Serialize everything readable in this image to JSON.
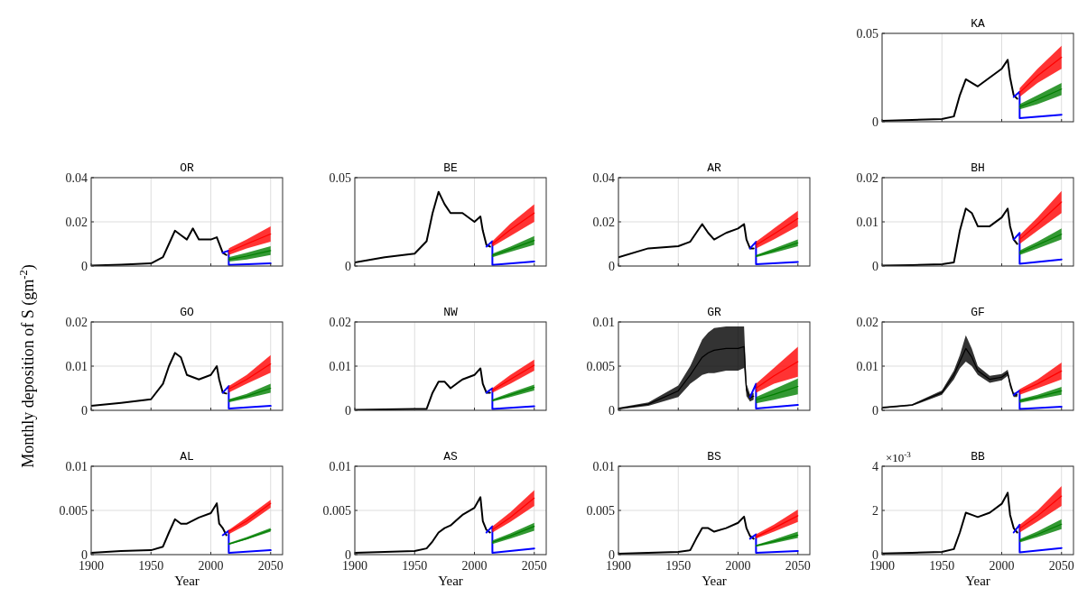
{
  "chart_data": [
    {
      "type": "line",
      "title": "KA",
      "xlim": [
        1900,
        2060
      ],
      "xticks": [
        1900,
        1950,
        2000,
        2050
      ],
      "ylim": [
        0,
        0.05
      ],
      "yticks": [
        0,
        0.05
      ],
      "grid": true,
      "tick_labels": "y",
      "x": [
        1900,
        1925,
        1950,
        1960,
        1965,
        1970,
        1975,
        1980,
        1990,
        2000,
        2005,
        2007,
        2010,
        2013
      ],
      "series": [
        {
          "color": "#000000",
          "values": [
            0.0005,
            0.001,
            0.0015,
            0.003,
            0.015,
            0.024,
            0.022,
            0.02,
            0.025,
            0.03,
            0.035,
            0.025,
            0.015,
            0.013
          ]
        },
        {
          "color": "#0000ff",
          "x": [
            2010,
            2015,
            2015,
            2050
          ],
          "values": [
            0.014,
            0.017,
            0.002,
            0.004
          ]
        },
        {
          "color": "#ff0000",
          "x": [
            2015,
            2030,
            2050
          ],
          "values": [
            0.0165,
            0.026,
            0.0365
          ],
          "lower": [
            0.014,
            0.022,
            0.03
          ],
          "upper": [
            0.019,
            0.03,
            0.043
          ]
        },
        {
          "color": "#007f00",
          "x": [
            2015,
            2030,
            2050
          ],
          "values": [
            0.0085,
            0.0125,
            0.0185
          ],
          "lower": [
            0.007,
            0.01,
            0.015
          ],
          "upper": [
            0.01,
            0.015,
            0.022
          ]
        }
      ]
    },
    {
      "type": "line",
      "title": "OR",
      "xlim": [
        1900,
        2060
      ],
      "xticks": [
        1900,
        1950,
        2000,
        2050
      ],
      "ylim": [
        0,
        0.04
      ],
      "yticks": [
        0,
        0.02,
        0.04
      ],
      "grid": true,
      "tick_labels": "y",
      "x": [
        1900,
        1925,
        1950,
        1960,
        1965,
        1970,
        1975,
        1980,
        1985,
        1990,
        2000,
        2005,
        2010,
        2013
      ],
      "series": [
        {
          "color": "#000000",
          "values": [
            0.0002,
            0.0006,
            0.0012,
            0.004,
            0.01,
            0.016,
            0.014,
            0.012,
            0.017,
            0.012,
            0.012,
            0.013,
            0.006,
            0.005
          ]
        },
        {
          "color": "#0000ff",
          "x": [
            2010,
            2015,
            2015,
            2050
          ],
          "values": [
            0.006,
            0.007,
            0.0005,
            0.0012
          ]
        },
        {
          "color": "#ff0000",
          "x": [
            2015,
            2030,
            2050
          ],
          "values": [
            0.0065,
            0.01,
            0.0145
          ],
          "lower": [
            0.005,
            0.008,
            0.011
          ],
          "upper": [
            0.008,
            0.012,
            0.018
          ]
        },
        {
          "color": "#007f00",
          "x": [
            2015,
            2030,
            2050
          ],
          "values": [
            0.003,
            0.0045,
            0.007
          ],
          "lower": [
            0.002,
            0.003,
            0.005
          ],
          "upper": [
            0.004,
            0.006,
            0.009
          ]
        }
      ]
    },
    {
      "type": "line",
      "title": "BE",
      "xlim": [
        1900,
        2060
      ],
      "xticks": [
        1900,
        1950,
        2000,
        2050
      ],
      "ylim": [
        0,
        0.05
      ],
      "yticks": [
        0,
        0.05
      ],
      "grid": true,
      "tick_labels": "y",
      "x": [
        1900,
        1925,
        1950,
        1960,
        1965,
        1970,
        1975,
        1980,
        1990,
        2000,
        2005,
        2007,
        2010,
        2013
      ],
      "series": [
        {
          "color": "#000000",
          "values": [
            0.002,
            0.005,
            0.007,
            0.014,
            0.03,
            0.042,
            0.035,
            0.03,
            0.03,
            0.025,
            0.028,
            0.02,
            0.012,
            0.011
          ]
        },
        {
          "color": "#0000ff",
          "x": [
            2010,
            2015,
            2015,
            2050
          ],
          "values": [
            0.011,
            0.014,
            0.0007,
            0.0025
          ]
        },
        {
          "color": "#ff0000",
          "x": [
            2015,
            2030,
            2050
          ],
          "values": [
            0.0125,
            0.0205,
            0.03
          ],
          "lower": [
            0.011,
            0.017,
            0.025
          ],
          "upper": [
            0.014,
            0.024,
            0.035
          ]
        },
        {
          "color": "#007f00",
          "x": [
            2015,
            2030,
            2050
          ],
          "values": [
            0.006,
            0.0095,
            0.0145
          ],
          "lower": [
            0.005,
            0.008,
            0.012
          ],
          "upper": [
            0.007,
            0.011,
            0.017
          ]
        }
      ]
    },
    {
      "type": "line",
      "title": "AR",
      "xlim": [
        1900,
        2060
      ],
      "xticks": [
        1900,
        1950,
        2000,
        2050
      ],
      "ylim": [
        0,
        0.04
      ],
      "yticks": [
        0,
        0.02,
        0.04
      ],
      "grid": true,
      "tick_labels": "y",
      "x": [
        1900,
        1925,
        1950,
        1960,
        1965,
        1970,
        1975,
        1980,
        1990,
        2000,
        2005,
        2007,
        2010,
        2013
      ],
      "series": [
        {
          "color": "#000000",
          "values": [
            0.004,
            0.008,
            0.009,
            0.011,
            0.015,
            0.019,
            0.015,
            0.012,
            0.015,
            0.017,
            0.019,
            0.012,
            0.008,
            0.008
          ]
        },
        {
          "color": "#0000ff",
          "x": [
            2010,
            2015,
            2015,
            2050
          ],
          "values": [
            0.008,
            0.011,
            0.0008,
            0.0018
          ]
        },
        {
          "color": "#ff0000",
          "x": [
            2015,
            2030,
            2050
          ],
          "values": [
            0.0095,
            0.0145,
            0.0215
          ],
          "lower": [
            0.008,
            0.012,
            0.018
          ],
          "upper": [
            0.011,
            0.017,
            0.025
          ]
        },
        {
          "color": "#007f00",
          "x": [
            2015,
            2030,
            2050
          ],
          "values": [
            0.0045,
            0.007,
            0.0105
          ],
          "lower": [
            0.004,
            0.006,
            0.009
          ],
          "upper": [
            0.005,
            0.008,
            0.012
          ]
        }
      ]
    },
    {
      "type": "line",
      "title": "BH",
      "xlim": [
        1900,
        2060
      ],
      "xticks": [
        1900,
        1950,
        2000,
        2050
      ],
      "ylim": [
        0,
        0.02
      ],
      "yticks": [
        0,
        0.01,
        0.02
      ],
      "grid": true,
      "tick_labels": "y",
      "x": [
        1900,
        1925,
        1950,
        1960,
        1965,
        1970,
        1975,
        1980,
        1990,
        2000,
        2005,
        2007,
        2010,
        2013
      ],
      "series": [
        {
          "color": "#000000",
          "values": [
            0.0001,
            0.0002,
            0.0004,
            0.0008,
            0.008,
            0.013,
            0.012,
            0.009,
            0.009,
            0.011,
            0.013,
            0.009,
            0.006,
            0.005
          ]
        },
        {
          "color": "#0000ff",
          "x": [
            2010,
            2015,
            2015,
            2050
          ],
          "values": [
            0.006,
            0.0075,
            0.0005,
            0.0015
          ]
        },
        {
          "color": "#ff0000",
          "x": [
            2015,
            2030,
            2050
          ],
          "values": [
            0.006,
            0.0095,
            0.0145
          ],
          "lower": [
            0.005,
            0.008,
            0.012
          ],
          "upper": [
            0.007,
            0.011,
            0.017
          ]
        },
        {
          "color": "#007f00",
          "x": [
            2015,
            2030,
            2050
          ],
          "values": [
            0.003,
            0.0048,
            0.0072
          ],
          "lower": [
            0.0025,
            0.004,
            0.006
          ],
          "upper": [
            0.0035,
            0.0055,
            0.0085
          ]
        }
      ]
    },
    {
      "type": "line",
      "title": "GO",
      "ylabel": "Monthly deposition of S (gm$^{-2}$)",
      "xlim": [
        1900,
        2060
      ],
      "xticks": [
        1900,
        1950,
        2000,
        2050
      ],
      "ylim": [
        0,
        0.02
      ],
      "yticks": [
        0,
        0.01,
        0.02
      ],
      "grid": true,
      "tick_labels": "y",
      "x": [
        1900,
        1925,
        1950,
        1960,
        1965,
        1970,
        1975,
        1980,
        1990,
        2000,
        2005,
        2007,
        2010,
        2013
      ],
      "series": [
        {
          "color": "#000000",
          "values": [
            0.001,
            0.0017,
            0.0025,
            0.006,
            0.01,
            0.013,
            0.012,
            0.008,
            0.007,
            0.008,
            0.01,
            0.007,
            0.004,
            0.0038
          ]
        },
        {
          "color": "#0000ff",
          "x": [
            2010,
            2015,
            2015,
            2050
          ],
          "values": [
            0.004,
            0.0055,
            0.0004,
            0.001
          ]
        },
        {
          "color": "#ff0000",
          "x": [
            2015,
            2030,
            2050
          ],
          "values": [
            0.0048,
            0.007,
            0.0105
          ],
          "lower": [
            0.004,
            0.006,
            0.0085
          ],
          "upper": [
            0.0055,
            0.008,
            0.0125
          ]
        },
        {
          "color": "#007f00",
          "x": [
            2015,
            2030,
            2050
          ],
          "values": [
            0.0022,
            0.0032,
            0.005
          ],
          "lower": [
            0.0018,
            0.0027,
            0.004
          ],
          "upper": [
            0.0025,
            0.0037,
            0.006
          ]
        }
      ]
    },
    {
      "type": "line",
      "title": "NW",
      "xlim": [
        1900,
        2060
      ],
      "xticks": [
        1900,
        1950,
        2000,
        2050
      ],
      "ylim": [
        0,
        0.02
      ],
      "yticks": [
        0,
        0.01,
        0.02
      ],
      "grid": true,
      "tick_labels": "y",
      "x": [
        1900,
        1925,
        1950,
        1960,
        1965,
        1970,
        1975,
        1980,
        1990,
        2000,
        2005,
        2007,
        2010,
        2013
      ],
      "series": [
        {
          "color": "#000000",
          "values": [
            0.0001,
            0.0002,
            0.0003,
            0.0003,
            0.004,
            0.0065,
            0.0065,
            0.005,
            0.007,
            0.008,
            0.0095,
            0.006,
            0.004,
            0.004
          ]
        },
        {
          "color": "#0000ff",
          "x": [
            2010,
            2015,
            2015,
            2050
          ],
          "values": [
            0.004,
            0.005,
            0.0003,
            0.0009
          ]
        },
        {
          "color": "#ff0000",
          "x": [
            2015,
            2030,
            2050
          ],
          "values": [
            0.0045,
            0.007,
            0.0102
          ],
          "lower": [
            0.004,
            0.006,
            0.009
          ],
          "upper": [
            0.005,
            0.008,
            0.0115
          ]
        },
        {
          "color": "#007f00",
          "x": [
            2015,
            2030,
            2050
          ],
          "values": [
            0.0022,
            0.0035,
            0.0052
          ],
          "lower": [
            0.002,
            0.003,
            0.0045
          ],
          "upper": [
            0.0025,
            0.004,
            0.0058
          ]
        }
      ]
    },
    {
      "type": "line",
      "title": "GR",
      "xlim": [
        1900,
        2060
      ],
      "xticks": [
        1900,
        1950,
        2000,
        2050
      ],
      "ylim": [
        0,
        0.01
      ],
      "yticks": [
        0,
        0.005,
        0.01
      ],
      "grid": true,
      "tick_labels": "y",
      "x": [
        1900,
        1925,
        1950,
        1960,
        1965,
        1970,
        1975,
        1980,
        1990,
        2000,
        2005,
        2007,
        2010,
        2013
      ],
      "series": [
        {
          "color": "#000000",
          "values": [
            0.0002,
            0.0007,
            0.0022,
            0.004,
            0.005,
            0.006,
            0.0065,
            0.0068,
            0.007,
            0.007,
            0.0072,
            0.0023,
            0.0014,
            0.0016
          ],
          "lower": [
            0.0001,
            0.0005,
            0.0015,
            0.003,
            0.0035,
            0.004,
            0.0042,
            0.0042,
            0.0045,
            0.0045,
            0.0048,
            0.0016,
            0.001,
            0.0012
          ],
          "upper": [
            0.0003,
            0.0009,
            0.0028,
            0.005,
            0.0065,
            0.008,
            0.0088,
            0.0093,
            0.0095,
            0.0095,
            0.0095,
            0.003,
            0.0018,
            0.002
          ]
        },
        {
          "color": "#0000ff",
          "x": [
            2010,
            2015,
            2015,
            2050
          ],
          "values": [
            0.0015,
            0.003,
            0.0002,
            0.0006
          ]
        },
        {
          "color": "#ff0000",
          "x": [
            2015,
            2030,
            2050
          ],
          "values": [
            0.0025,
            0.0039,
            0.0055
          ],
          "lower": [
            0.002,
            0.003,
            0.0038
          ],
          "upper": [
            0.003,
            0.0048,
            0.0072
          ]
        },
        {
          "color": "#007f00",
          "x": [
            2015,
            2030,
            2050
          ],
          "values": [
            0.0012,
            0.0018,
            0.0027
          ],
          "lower": [
            0.0008,
            0.0012,
            0.0018
          ],
          "upper": [
            0.0015,
            0.0024,
            0.0036
          ]
        }
      ]
    },
    {
      "type": "line",
      "title": "GF",
      "xlim": [
        1900,
        2060
      ],
      "xticks": [
        1900,
        1950,
        2000,
        2050
      ],
      "ylim": [
        0,
        0.02
      ],
      "yticks": [
        0,
        0.01,
        0.02
      ],
      "grid": true,
      "tick_labels": "y",
      "x": [
        1900,
        1925,
        1950,
        1960,
        1965,
        1970,
        1975,
        1980,
        1990,
        2000,
        2005,
        2007,
        2010,
        2013
      ],
      "series": [
        {
          "color": "#000000",
          "values": [
            0.0006,
            0.0012,
            0.004,
            0.008,
            0.011,
            0.014,
            0.012,
            0.009,
            0.007,
            0.0075,
            0.0085,
            0.006,
            0.0035,
            0.0035
          ],
          "lower": [
            0.0004,
            0.001,
            0.0035,
            0.007,
            0.0095,
            0.011,
            0.01,
            0.008,
            0.0062,
            0.0068,
            0.0078,
            0.0052,
            0.003,
            0.003
          ],
          "upper": [
            0.0008,
            0.0014,
            0.0045,
            0.009,
            0.0125,
            0.017,
            0.014,
            0.01,
            0.0078,
            0.0082,
            0.0092,
            0.0068,
            0.004,
            0.004
          ]
        },
        {
          "color": "#0000ff",
          "x": [
            2010,
            2015,
            2015,
            2050
          ],
          "values": [
            0.0035,
            0.0045,
            0.0003,
            0.0008
          ]
        },
        {
          "color": "#ff0000",
          "x": [
            2015,
            2030,
            2050
          ],
          "values": [
            0.0042,
            0.006,
            0.0089
          ],
          "lower": [
            0.0035,
            0.005,
            0.007
          ],
          "upper": [
            0.0048,
            0.007,
            0.0108
          ]
        },
        {
          "color": "#007f00",
          "x": [
            2015,
            2030,
            2050
          ],
          "values": [
            0.0021,
            0.003,
            0.0044
          ],
          "lower": [
            0.0017,
            0.0025,
            0.0035
          ],
          "upper": [
            0.0025,
            0.0035,
            0.0053
          ]
        }
      ]
    },
    {
      "type": "line",
      "title": "AL",
      "xlabel": "Year",
      "xlim": [
        1900,
        2060
      ],
      "xticks": [
        1900,
        1950,
        2000,
        2050
      ],
      "ylim": [
        0,
        0.01
      ],
      "yticks": [
        0,
        0.005,
        0.01
      ],
      "grid": true,
      "x": [
        1900,
        1925,
        1950,
        1960,
        1965,
        1970,
        1975,
        1980,
        1990,
        2000,
        2005,
        2007,
        2010,
        2013
      ],
      "series": [
        {
          "color": "#000000",
          "values": [
            0.0002,
            0.0004,
            0.0005,
            0.0009,
            0.0025,
            0.004,
            0.0035,
            0.0035,
            0.0042,
            0.0047,
            0.0058,
            0.0035,
            0.003,
            0.0022
          ]
        },
        {
          "color": "#0000ff",
          "x": [
            2010,
            2015,
            2015,
            2050
          ],
          "values": [
            0.0022,
            0.0027,
            0.0002,
            0.0005
          ]
        },
        {
          "color": "#ff0000",
          "x": [
            2015,
            2030,
            2050
          ],
          "values": [
            0.0026,
            0.0038,
            0.0058
          ],
          "lower": [
            0.0023,
            0.0034,
            0.0053
          ],
          "upper": [
            0.0028,
            0.0042,
            0.0062
          ]
        },
        {
          "color": "#007f00",
          "x": [
            2015,
            2030,
            2050
          ],
          "values": [
            0.0012,
            0.0018,
            0.0028
          ],
          "lower": [
            0.0011,
            0.0017,
            0.0026
          ],
          "upper": [
            0.0013,
            0.002,
            0.003
          ]
        }
      ]
    },
    {
      "type": "line",
      "title": "AS",
      "xlabel": "Year",
      "xlim": [
        1900,
        2060
      ],
      "xticks": [
        1900,
        1950,
        2000,
        2050
      ],
      "ylim": [
        0,
        0.01
      ],
      "yticks": [
        0,
        0.005,
        0.01
      ],
      "grid": true,
      "x": [
        1900,
        1925,
        1950,
        1960,
        1965,
        1970,
        1975,
        1980,
        1990,
        2000,
        2005,
        2007,
        2010,
        2013
      ],
      "series": [
        {
          "color": "#000000",
          "values": [
            0.0002,
            0.0003,
            0.0004,
            0.0007,
            0.0015,
            0.0025,
            0.003,
            0.0033,
            0.0045,
            0.0053,
            0.0065,
            0.0038,
            0.0028,
            0.0025
          ]
        },
        {
          "color": "#0000ff",
          "x": [
            2010,
            2015,
            2015,
            2050
          ],
          "values": [
            0.0025,
            0.0032,
            0.0002,
            0.0007
          ]
        },
        {
          "color": "#ff0000",
          "x": [
            2015,
            2030,
            2050
          ],
          "values": [
            0.0028,
            0.0042,
            0.0064
          ],
          "lower": [
            0.0025,
            0.0037,
            0.0055
          ],
          "upper": [
            0.0032,
            0.0048,
            0.0073
          ]
        },
        {
          "color": "#007f00",
          "x": [
            2015,
            2030,
            2050
          ],
          "values": [
            0.0014,
            0.0021,
            0.0032
          ],
          "lower": [
            0.0012,
            0.0018,
            0.0027
          ],
          "upper": [
            0.0016,
            0.0024,
            0.0036
          ]
        }
      ]
    },
    {
      "type": "line",
      "title": "BS",
      "xlabel": "Year",
      "xlim": [
        1900,
        2060
      ],
      "xticks": [
        1900,
        1950,
        2000,
        2050
      ],
      "ylim": [
        0,
        0.01
      ],
      "yticks": [
        0,
        0.005,
        0.01
      ],
      "grid": true,
      "x": [
        1900,
        1925,
        1950,
        1960,
        1965,
        1970,
        1975,
        1980,
        1990,
        2000,
        2005,
        2007,
        2010,
        2013
      ],
      "series": [
        {
          "color": "#000000",
          "values": [
            0.0001,
            0.0002,
            0.0003,
            0.0005,
            0.0018,
            0.003,
            0.003,
            0.0026,
            0.003,
            0.0036,
            0.0043,
            0.003,
            0.0021,
            0.0018
          ]
        },
        {
          "color": "#0000ff",
          "x": [
            2010,
            2015,
            2015,
            2050
          ],
          "values": [
            0.0018,
            0.0023,
            0.0002,
            0.0004
          ]
        },
        {
          "color": "#ff0000",
          "x": [
            2015,
            2030,
            2050
          ],
          "values": [
            0.002,
            0.003,
            0.0044
          ],
          "lower": [
            0.0018,
            0.0026,
            0.0037
          ],
          "upper": [
            0.0023,
            0.0034,
            0.0051
          ]
        },
        {
          "color": "#007f00",
          "x": [
            2015,
            2030,
            2050
          ],
          "values": [
            0.001,
            0.0015,
            0.0022
          ],
          "lower": [
            0.0009,
            0.0013,
            0.0019
          ],
          "upper": [
            0.0011,
            0.0017,
            0.0026
          ]
        }
      ]
    },
    {
      "type": "line",
      "title": "BB",
      "xlabel": "Year",
      "annotations": [
        "×10$^{-3}$"
      ],
      "xlim": [
        1900,
        2060
      ],
      "xticks": [
        1900,
        1950,
        2000,
        2050
      ],
      "ylim": [
        0,
        4
      ],
      "yticks": [
        0,
        2,
        4
      ],
      "grid": true,
      "x": [
        1900,
        1925,
        1950,
        1960,
        1965,
        1970,
        1975,
        1980,
        1990,
        2000,
        2005,
        2007,
        2010,
        2013
      ],
      "series": [
        {
          "color": "#000000",
          "values": [
            0.05,
            0.08,
            0.12,
            0.25,
            1.0,
            1.9,
            1.8,
            1.7,
            1.9,
            2.3,
            2.8,
            1.8,
            1.2,
            1.0
          ]
        },
        {
          "color": "#0000ff",
          "x": [
            2010,
            2015,
            2015,
            2050
          ],
          "values": [
            1.0,
            1.35,
            0.1,
            0.3
          ]
        },
        {
          "color": "#ff0000",
          "x": [
            2015,
            2030,
            2050
          ],
          "values": [
            1.18,
            1.75,
            2.65
          ],
          "lower": [
            1.0,
            1.5,
            2.2
          ],
          "upper": [
            1.35,
            2.0,
            3.1
          ]
        },
        {
          "color": "#007f00",
          "x": [
            2015,
            2030,
            2050
          ],
          "values": [
            0.62,
            0.92,
            1.38
          ],
          "lower": [
            0.55,
            0.8,
            1.15
          ],
          "upper": [
            0.7,
            1.05,
            1.6
          ]
        }
      ]
    }
  ]
}
